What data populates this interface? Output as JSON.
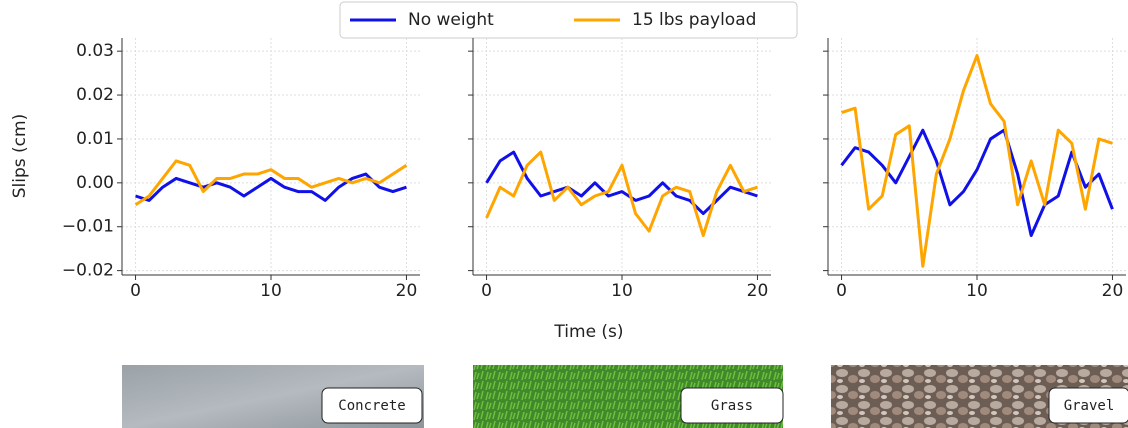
{
  "chart_data": [
    {
      "type": "line",
      "ylabel": "Slips (cm)",
      "annotation": "Concrete",
      "x": [
        0,
        1,
        2,
        3,
        4,
        5,
        6,
        7,
        8,
        9,
        10,
        11,
        12,
        13,
        14,
        15,
        16,
        17,
        18,
        19,
        20
      ],
      "series": [
        {
          "name": "No weight",
          "color": "#1010e8",
          "values": [
            -0.003,
            -0.004,
            -0.001,
            0.001,
            0.0,
            -0.001,
            0.0,
            -0.001,
            -0.003,
            -0.001,
            0.001,
            -0.001,
            -0.002,
            -0.002,
            -0.004,
            -0.001,
            0.001,
            0.002,
            -0.001,
            -0.002,
            -0.001
          ]
        },
        {
          "name": "15 lbs payload",
          "color": "#ffa500",
          "values": [
            -0.005,
            -0.003,
            0.001,
            0.005,
            0.004,
            -0.002,
            0.001,
            0.001,
            0.002,
            0.002,
            0.003,
            0.001,
            0.001,
            -0.001,
            0.0,
            0.001,
            0.0,
            0.001,
            0.0,
            0.002,
            0.004
          ]
        }
      ],
      "xlim": [
        -1,
        21
      ],
      "xticks": [
        0,
        10,
        20
      ],
      "ylim": [
        -0.021,
        0.033
      ],
      "yticks": [
        {
          "value": -0.02,
          "label": "−0.02"
        },
        {
          "value": -0.01,
          "label": "−0.01"
        },
        {
          "value": 0,
          "label": "0.00"
        },
        0.01,
        0.02,
        0.03
      ],
      "grid": true
    },
    {
      "type": "line",
      "xlabel": "Time (s)",
      "annotation": "Grass",
      "x": [
        0,
        1,
        2,
        3,
        4,
        5,
        6,
        7,
        8,
        9,
        10,
        11,
        12,
        13,
        14,
        15,
        16,
        17,
        18,
        19,
        20
      ],
      "series": [
        {
          "color": "#1010e8",
          "values": [
            0.0,
            0.005,
            0.007,
            0.001,
            -0.003,
            -0.002,
            -0.001,
            -0.003,
            0.0,
            -0.003,
            -0.002,
            -0.004,
            -0.003,
            0.0,
            -0.003,
            -0.004,
            -0.007,
            -0.004,
            -0.001,
            -0.002,
            -0.003
          ]
        },
        {
          "color": "#ffa500",
          "values": [
            -0.008,
            -0.001,
            -0.003,
            0.004,
            0.007,
            -0.004,
            -0.001,
            -0.005,
            -0.003,
            -0.002,
            0.004,
            -0.007,
            -0.011,
            -0.003,
            -0.001,
            -0.002,
            -0.012,
            -0.002,
            0.004,
            -0.002,
            -0.001
          ]
        }
      ],
      "xlim": [
        -1,
        21
      ],
      "xticks": [
        0,
        10,
        20
      ],
      "ylim": [
        -0.021,
        0.033
      ],
      "yticks": [
        -0.02,
        -0.01,
        0,
        0.01,
        0.02,
        0.03
      ],
      "grid": true
    },
    {
      "type": "line",
      "annotation": "Gravel",
      "x": [
        0,
        1,
        2,
        3,
        4,
        5,
        6,
        7,
        8,
        9,
        10,
        11,
        12,
        13,
        14,
        15,
        16,
        17,
        18,
        19,
        20
      ],
      "series": [
        {
          "color": "#1010e8",
          "values": [
            0.004,
            0.008,
            0.007,
            0.004,
            0.0,
            0.006,
            0.012,
            0.005,
            -0.005,
            -0.002,
            0.003,
            0.01,
            0.012,
            0.002,
            -0.012,
            -0.005,
            -0.003,
            0.007,
            -0.001,
            0.002,
            -0.006
          ]
        },
        {
          "color": "#ffa500",
          "values": [
            0.016,
            0.017,
            -0.006,
            -0.003,
            0.011,
            0.013,
            -0.019,
            0.002,
            0.01,
            0.021,
            0.029,
            0.018,
            0.014,
            -0.005,
            0.005,
            -0.005,
            0.012,
            0.009,
            -0.006,
            0.01,
            0.009
          ]
        }
      ],
      "xlim": [
        -1,
        21
      ],
      "xticks": [
        0,
        10,
        20
      ],
      "ylim": [
        -0.021,
        0.033
      ],
      "yticks": [
        -0.02,
        -0.01,
        0,
        0.01,
        0.02,
        0.03
      ],
      "grid": true
    }
  ]
}
